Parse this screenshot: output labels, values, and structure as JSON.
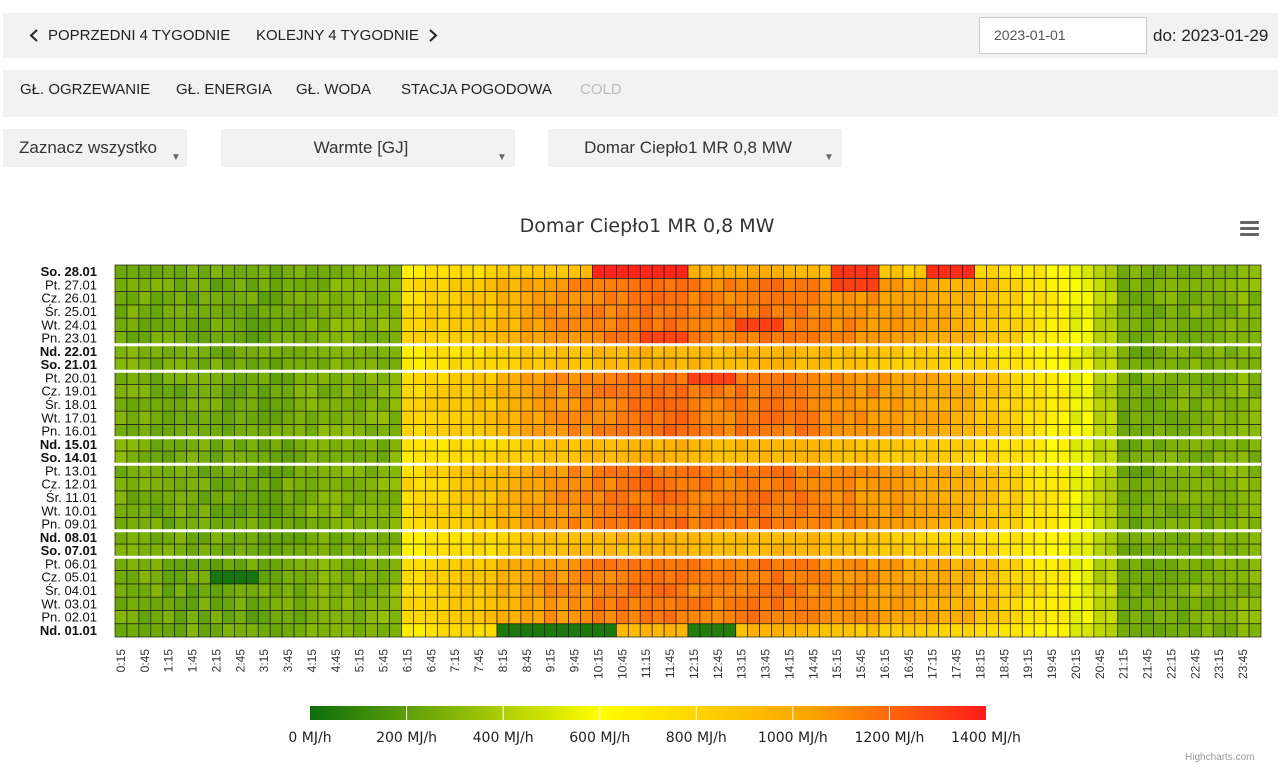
{
  "nav": {
    "prev_label": "POPRZEDNI 4 TYGODNIE",
    "next_label": "KOLEJNY 4 TYGODNIE",
    "date_from": "2023-01-01",
    "date_to_label": "do: 2023-01-29"
  },
  "tabs": [
    {
      "label": "GŁ. OGRZEWANIE"
    },
    {
      "label": "GŁ. ENERGIA"
    },
    {
      "label": "GŁ. WODA"
    },
    {
      "label": "STACJA POGODOWA"
    },
    {
      "label": "COLD"
    }
  ],
  "filters": {
    "select_all": "Zaznacz wszystko",
    "unit": "Warmte [GJ]",
    "meter": "Domar Ciepło1 MR 0,8 MW"
  },
  "credits": "Highcharts.com",
  "chart_data": {
    "type": "heatmap",
    "title": "Domar Ciepło1 MR 0,8 MW",
    "y_categories": [
      "Nd. 01.01",
      "Pn. 02.01",
      "Wt. 03.01",
      "Śr. 04.01",
      "Cz. 05.01",
      "Pt. 06.01",
      "So. 07.01",
      "Nd. 08.01",
      "Pn. 09.01",
      "Wt. 10.01",
      "Śr. 11.01",
      "Cz. 12.01",
      "Pt. 13.01",
      "So. 14.01",
      "Nd. 15.01",
      "Pn. 16.01",
      "Wt. 17.01",
      "Śr. 18.01",
      "Cz. 19.01",
      "Pt. 20.01",
      "So. 21.01",
      "Nd. 22.01",
      "Pn. 23.01",
      "Wt. 24.01",
      "Śr. 25.01",
      "Cz. 26.01",
      "Pt. 27.01",
      "So. 28.01"
    ],
    "bold_rows": [
      "Nd. 01.01",
      "So. 07.01",
      "Nd. 08.01",
      "So. 14.01",
      "Nd. 15.01",
      "So. 21.01",
      "Nd. 22.01",
      "So. 28.01"
    ],
    "week_separators_after": [
      "Pt. 06.01",
      "Nd. 08.01",
      "Pt. 13.01",
      "Nd. 15.01",
      "Pt. 20.01",
      "Nd. 22.01"
    ],
    "x_labels": [
      "0:15",
      "0:45",
      "1:15",
      "1:45",
      "2:15",
      "2:45",
      "3:15",
      "3:45",
      "4:15",
      "4:45",
      "5:15",
      "5:45",
      "6:15",
      "6:45",
      "7:15",
      "7:45",
      "8:15",
      "8:45",
      "9:15",
      "9:45",
      "10:15",
      "10:45",
      "11:15",
      "11:45",
      "12:15",
      "12:45",
      "13:15",
      "13:45",
      "14:15",
      "14:45",
      "15:15",
      "15:45",
      "16:15",
      "16:45",
      "17:15",
      "17:45",
      "18:15",
      "18:45",
      "19:15",
      "19:45",
      "20:15",
      "20:45",
      "21:15",
      "21:45",
      "22:15",
      "22:45",
      "23:15",
      "23:45"
    ],
    "x_step": "15 min",
    "slots_per_day": 96,
    "value_unit": "MJ/h",
    "color_axis": {
      "min": 0,
      "max": 1400,
      "stops": [
        [
          0,
          "#0c6e0c"
        ],
        [
          0.43,
          "#ffff00"
        ],
        [
          0.75,
          "#fca000"
        ],
        [
          1,
          "#ff1a1a"
        ]
      ],
      "labels": [
        "0 MJ/h",
        "200 MJ/h",
        "400 MJ/h",
        "600 MJ/h",
        "800 MJ/h",
        "1000 MJ/h",
        "1200 MJ/h",
        "1400 MJ/h"
      ]
    },
    "profile_hourly_weekday": [
      260,
      260,
      250,
      250,
      240,
      240,
      240,
      260,
      280,
      290,
      290,
      300,
      780,
      820,
      850,
      880,
      960,
      1030,
      1080,
      1100,
      1130,
      1150,
      1170,
      1170,
      1140,
      1120,
      1150,
      1160,
      1150,
      1120,
      1100,
      1080,
      1050,
      1020,
      1000,
      960,
      900,
      820,
      740,
      680,
      560,
      420,
      250,
      260,
      270,
      280,
      290,
      300
    ],
    "profile_hourly_weekend": [
      280,
      270,
      260,
      260,
      250,
      250,
      250,
      250,
      260,
      270,
      280,
      280,
      700,
      740,
      760,
      780,
      820,
      860,
      880,
      900,
      920,
      930,
      950,
      950,
      940,
      930,
      940,
      950,
      940,
      920,
      900,
      880,
      860,
      840,
      820,
      800,
      780,
      740,
      700,
      640,
      540,
      420,
      260,
      260,
      270,
      270,
      280,
      290
    ],
    "hot_spots": [
      {
        "day": "So. 28.01",
        "from": "10:15",
        "to": "11:45",
        "value": 1370
      },
      {
        "day": "So. 28.01",
        "from": "17:15",
        "to": "17:45",
        "value": 1350
      },
      {
        "day": "So. 28.01",
        "from": "15:15",
        "to": "15:45",
        "value": 1330
      },
      {
        "day": "Pt. 27.01",
        "from": "15:15",
        "to": "15:45",
        "value": 1300
      },
      {
        "day": "Wt. 24.01",
        "from": "13:15",
        "to": "13:45",
        "value": 1300
      },
      {
        "day": "Pn. 23.01",
        "from": "11:15",
        "to": "11:45",
        "value": 1290
      },
      {
        "day": "Pt. 20.01",
        "from": "12:15",
        "to": "12:45",
        "value": 1300
      }
    ],
    "cold_spots": [
      {
        "day": "Nd. 01.01",
        "from": "8:15",
        "to": "10:15",
        "value": 40
      },
      {
        "day": "Nd. 01.01",
        "from": "12:15",
        "to": "12:45",
        "value": 60
      },
      {
        "day": "Cz. 05.01",
        "from": "2:15",
        "to": "2:45",
        "value": 30
      }
    ]
  }
}
